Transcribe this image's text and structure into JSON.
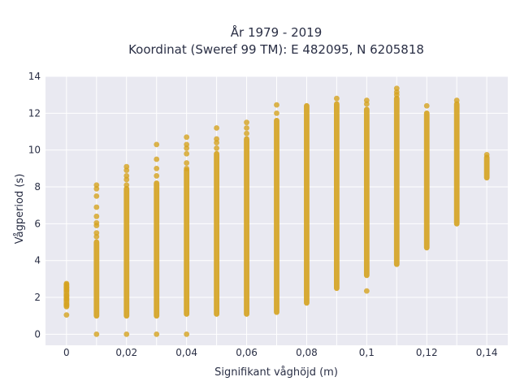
{
  "chart_data": {
    "type": "scatter",
    "title_line1": "År 1979 - 2019",
    "title_line2": "Koordinat (Sweref 99 TM): E 482095, N 6205818",
    "xlabel": "Signifikant våghöjd (m)",
    "ylabel": "Vågperiod (s)",
    "xlim": [
      -0.007,
      0.147
    ],
    "ylim": [
      -0.6,
      14
    ],
    "x_ticks": [
      0,
      0.01,
      0.02,
      0.03,
      0.04,
      0.05,
      0.06,
      0.07,
      0.08,
      0.09,
      0.1,
      0.11,
      0.12,
      0.13,
      0.14
    ],
    "x_tick_labels": [
      "0",
      "0,02",
      "0,04",
      "0,06",
      "0,08",
      "0,1",
      "0,12",
      "0,14"
    ],
    "x_tick_label_values": [
      0,
      0.02,
      0.04,
      0.06,
      0.08,
      0.1,
      0.12,
      0.14
    ],
    "y_ticks": [
      0,
      2,
      4,
      6,
      8,
      10,
      12,
      14
    ],
    "y_tick_labels": [
      "0",
      "2",
      "4",
      "6",
      "8",
      "10",
      "12",
      "14"
    ],
    "grid": true,
    "marker_color": "#d4a21f",
    "plot_background": "#e9e9f1",
    "grid_color": "#ffffff",
    "series": [
      {
        "dense_ranges": [
          {
            "x": 0.0,
            "y_min": 1.5,
            "y_max": 2.7
          },
          {
            "x": 0.01,
            "y_min": 1.0,
            "y_max": 5.0
          },
          {
            "x": 0.02,
            "y_min": 1.0,
            "y_max": 7.9
          },
          {
            "x": 0.03,
            "y_min": 1.0,
            "y_max": 8.2
          },
          {
            "x": 0.04,
            "y_min": 1.1,
            "y_max": 8.9
          },
          {
            "x": 0.05,
            "y_min": 1.1,
            "y_max": 9.8
          },
          {
            "x": 0.06,
            "y_min": 1.1,
            "y_max": 10.6
          },
          {
            "x": 0.07,
            "y_min": 1.2,
            "y_max": 11.6
          },
          {
            "x": 0.08,
            "y_min": 1.7,
            "y_max": 12.4
          },
          {
            "x": 0.09,
            "y_min": 2.5,
            "y_max": 12.5
          },
          {
            "x": 0.1,
            "y_min": 3.2,
            "y_max": 12.2
          },
          {
            "x": 0.11,
            "y_min": 3.8,
            "y_max": 12.8
          },
          {
            "x": 0.12,
            "y_min": 4.7,
            "y_max": 12.0
          },
          {
            "x": 0.13,
            "y_min": 6.0,
            "y_max": 12.5
          },
          {
            "x": 0.14,
            "y_min": 8.5,
            "y_max": 9.6
          }
        ],
        "points": [
          [
            0.0,
            1.05
          ],
          [
            0.0,
            1.6
          ],
          [
            0.0,
            1.9
          ],
          [
            0.0,
            2.1
          ],
          [
            0.0,
            2.4
          ],
          [
            0.0,
            2.55
          ],
          [
            0.0,
            2.75
          ],
          [
            0.01,
            0.0
          ],
          [
            0.01,
            5.3
          ],
          [
            0.01,
            5.5
          ],
          [
            0.01,
            5.9
          ],
          [
            0.01,
            6.05
          ],
          [
            0.01,
            6.4
          ],
          [
            0.01,
            6.9
          ],
          [
            0.01,
            7.5
          ],
          [
            0.01,
            7.9
          ],
          [
            0.01,
            8.1
          ],
          [
            0.02,
            0.0
          ],
          [
            0.02,
            8.1
          ],
          [
            0.02,
            8.4
          ],
          [
            0.02,
            8.6
          ],
          [
            0.02,
            8.9
          ],
          [
            0.02,
            9.1
          ],
          [
            0.03,
            0.0
          ],
          [
            0.03,
            8.6
          ],
          [
            0.03,
            9.0
          ],
          [
            0.03,
            9.5
          ],
          [
            0.03,
            10.3
          ],
          [
            0.04,
            0.0
          ],
          [
            0.04,
            9.0
          ],
          [
            0.04,
            9.3
          ],
          [
            0.04,
            9.8
          ],
          [
            0.04,
            10.1
          ],
          [
            0.04,
            10.3
          ],
          [
            0.04,
            10.7
          ],
          [
            0.05,
            10.1
          ],
          [
            0.05,
            10.4
          ],
          [
            0.05,
            10.6
          ],
          [
            0.05,
            11.2
          ],
          [
            0.06,
            10.9
          ],
          [
            0.06,
            11.2
          ],
          [
            0.06,
            11.5
          ],
          [
            0.07,
            12.0
          ],
          [
            0.07,
            12.45
          ],
          [
            0.09,
            12.8
          ],
          [
            0.1,
            2.35
          ],
          [
            0.1,
            12.5
          ],
          [
            0.1,
            12.7
          ],
          [
            0.11,
            13.0
          ],
          [
            0.11,
            13.15
          ],
          [
            0.11,
            13.35
          ],
          [
            0.12,
            12.4
          ],
          [
            0.13,
            12.7
          ],
          [
            0.14,
            9.75
          ]
        ]
      }
    ]
  }
}
